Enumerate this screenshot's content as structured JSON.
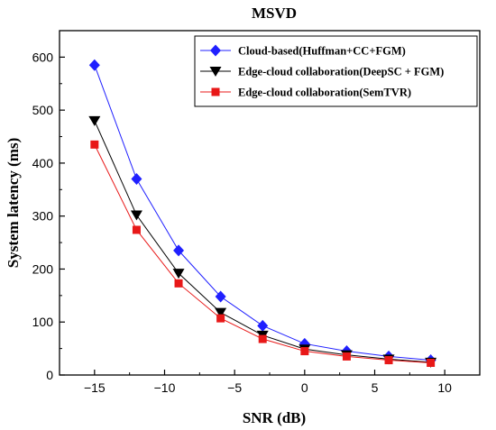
{
  "chart_data": {
    "type": "line",
    "title": "MSVD",
    "xlabel": "SNR (dB)",
    "ylabel": "System latency (ms)",
    "xlim": [
      -17.5,
      12.5
    ],
    "ylim": [
      0,
      650
    ],
    "xticks": [
      -15,
      -10,
      -5,
      0,
      5,
      10
    ],
    "yticks": [
      0,
      100,
      200,
      300,
      400,
      500,
      600
    ],
    "grid": false,
    "legend_position": "top-right",
    "x": [
      -15,
      -12,
      -9,
      -6,
      -3,
      0,
      3,
      6,
      9
    ],
    "series": [
      {
        "name": "Cloud-based(Huffman+CC+FGM)",
        "color": "#2020ff",
        "marker": "diamond",
        "values": [
          585,
          370,
          235,
          148,
          93,
          59,
          45,
          35,
          28
        ]
      },
      {
        "name": "Edge-cloud collaboration(DeepSC + FGM)",
        "color": "#000000",
        "marker": "triangle-down",
        "values": [
          480,
          302,
          192,
          118,
          75,
          49,
          38,
          30,
          24
        ]
      },
      {
        "name": "Edge-cloud collaboration(SemTVR)",
        "color": "#e81818",
        "marker": "square",
        "values": [
          435,
          274,
          173,
          107,
          68,
          45,
          35,
          28,
          23
        ]
      }
    ]
  }
}
